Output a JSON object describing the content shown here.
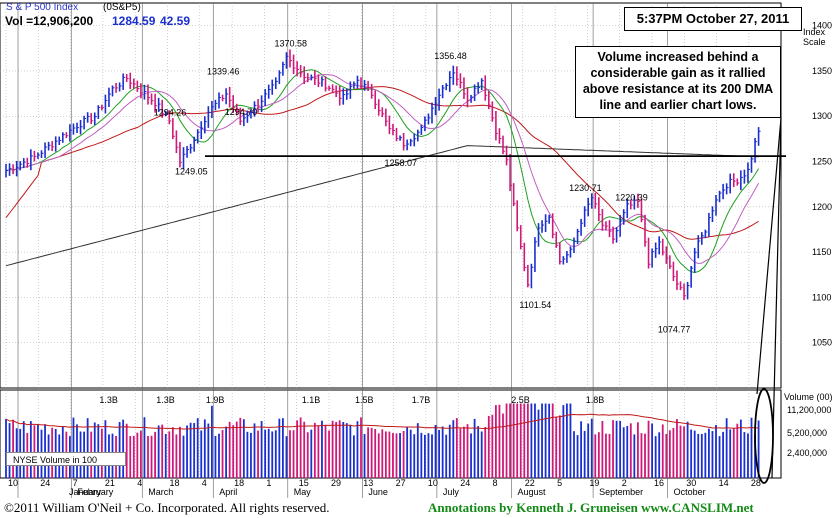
{
  "header": {
    "index_name": "S & P 500 Index",
    "symbol": "(0S&P5)",
    "volume_text": "Vol =12,906,200",
    "last_price": "1284.59",
    "change": "42.59"
  },
  "timestamp": "5:37PM October 27, 2011",
  "annotation": {
    "lines": [
      "Volume increased behind a",
      "considerable gain as it rallied",
      "above resistance at its 200 DMA",
      "line and earlier chart lows."
    ]
  },
  "footer": {
    "copyright": "©2011 William O'Neil + Co. Incorporated. All rights reserved.",
    "credits": "Annotations by Kenneth J. Gruneisen  www.CANSLIM.net"
  },
  "colors": {
    "up_bar": "#1a2fd0",
    "down_bar": "#d01878",
    "ma_50": "#c01818",
    "ma_200": "#303030",
    "ma_short1": "#20a020",
    "ma_short2": "#c060c0",
    "grid": "#a0a0a0"
  },
  "chart_data": [
    {
      "type": "ohlc",
      "title": "S & P 500 Index",
      "ylabel": "Index Scale",
      "ylim": [
        1000,
        1425
      ],
      "y_ticks": [
        1050,
        1100,
        1150,
        1200,
        1250,
        1300,
        1350,
        1400
      ],
      "y_tick_labels": [
        "1050",
        "1100",
        "1150",
        "1200",
        "1250",
        "1300",
        "1350",
        "1400"
      ],
      "x_tick_labels": [
        "10",
        "24",
        "7",
        "21",
        "4",
        "18",
        "4",
        "18",
        "1",
        "15",
        "29",
        "13",
        "27",
        "10",
        "24",
        "8",
        "22",
        "5",
        "19",
        "2",
        "16",
        "30",
        "14",
        "28"
      ],
      "month_labels": [
        "January",
        "February",
        "March",
        "April",
        "May",
        "June",
        "July",
        "August",
        "September",
        "October"
      ],
      "keyframes": [
        [
          0,
          1240
        ],
        [
          8,
          1255
        ],
        [
          20,
          1290
        ],
        [
          25,
          1300
        ],
        [
          30,
          1330
        ],
        [
          34,
          1342
        ],
        [
          42,
          1315
        ],
        [
          46,
          1295
        ],
        [
          49,
          1250
        ],
        [
          52,
          1268
        ],
        [
          57,
          1305
        ],
        [
          62,
          1325
        ],
        [
          66,
          1295
        ],
        [
          70,
          1310
        ],
        [
          76,
          1335
        ],
        [
          79,
          1365
        ],
        [
          84,
          1345
        ],
        [
          90,
          1335
        ],
        [
          95,
          1320
        ],
        [
          99,
          1340
        ],
        [
          103,
          1325
        ],
        [
          108,
          1285
        ],
        [
          112,
          1270
        ],
        [
          117,
          1285
        ],
        [
          122,
          1325
        ],
        [
          126,
          1350
        ],
        [
          130,
          1320
        ],
        [
          134,
          1340
        ],
        [
          138,
          1285
        ],
        [
          141,
          1250
        ],
        [
          144,
          1175
        ],
        [
          147,
          1115
        ],
        [
          150,
          1180
        ],
        [
          153,
          1190
        ],
        [
          156,
          1140
        ],
        [
          159,
          1150
        ],
        [
          162,
          1185
        ],
        [
          165,
          1210
        ],
        [
          168,
          1180
        ],
        [
          171,
          1165
        ],
        [
          175,
          1200
        ],
        [
          178,
          1205
        ],
        [
          181,
          1140
        ],
        [
          184,
          1160
        ],
        [
          188,
          1123
        ],
        [
          191,
          1100
        ],
        [
          194,
          1150
        ],
        [
          197,
          1175
        ],
        [
          200,
          1210
        ],
        [
          203,
          1225
        ],
        [
          206,
          1230
        ],
        [
          209,
          1240
        ],
        [
          212,
          1285
        ]
      ],
      "annotations": [
        {
          "text": "1294.26",
          "x": 45,
          "y": 1294.26
        },
        {
          "text": "1249.05",
          "x": 51,
          "y": 1249.05
        },
        {
          "text": "1339.46",
          "x": 60,
          "y": 1339.46
        },
        {
          "text": "1294.70",
          "x": 65,
          "y": 1294.7
        },
        {
          "text": "1370.58",
          "x": 79,
          "y": 1370.58
        },
        {
          "text": "1258.07",
          "x": 110,
          "y": 1258.07
        },
        {
          "text": "1356.48",
          "x": 124,
          "y": 1356.48
        },
        {
          "text": "1101.54",
          "x": 148,
          "y": 1101.54
        },
        {
          "text": "1230.71",
          "x": 162,
          "y": 1230.71
        },
        {
          "text": "1220.39",
          "x": 175,
          "y": 1220.39
        },
        {
          "text": "1074.77",
          "x": 187,
          "y": 1074.77
        }
      ],
      "resistance_level": 1256
    },
    {
      "type": "bar",
      "title": "Volume (00)",
      "series_name": "NYSE Volume in 100",
      "y_tick_labels": [
        "11,200,000",
        "5,200,000",
        "2,400,000"
      ],
      "peak_labels": [
        {
          "text": "1.3B",
          "x": 28
        },
        {
          "text": "1.3B",
          "x": 44
        },
        {
          "text": "1.9B",
          "x": 58
        },
        {
          "text": "1.1B",
          "x": 85
        },
        {
          "text": "1.5B",
          "x": 100
        },
        {
          "text": "1.7B",
          "x": 116
        },
        {
          "text": "2.5B",
          "x": 144
        },
        {
          "text": "1.8B",
          "x": 165
        }
      ]
    }
  ]
}
